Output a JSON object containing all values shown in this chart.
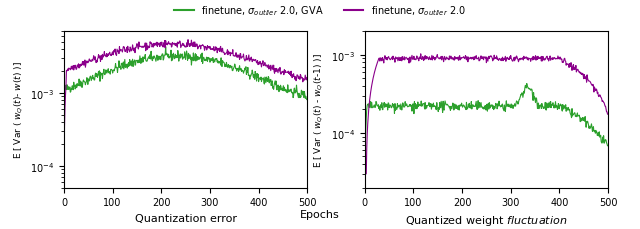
{
  "legend_labels": [
    "finetune, $\\sigma_{outlier}$ 2.0, GVA",
    "finetune, $\\sigma_{outlier}$ 2.0"
  ],
  "legend_colors": [
    "#2ca02c",
    "#8B008B"
  ],
  "left_ylabel": "E [ Var ( $w_Q(t)$- $w(t)$ )]",
  "right_ylabel": "E [ Var ( $w_Q(t)$ - $w_Q(t$-1) )]",
  "left_xlabel": "Quantization error",
  "right_xlabel": "Quantized weight $\\it{fluctuation}$",
  "shared_xlabel": "Epochs",
  "xlim": [
    0,
    500
  ],
  "left_ylim": [
    5e-05,
    0.007
  ],
  "right_ylim": [
    2e-05,
    0.002
  ],
  "n_points": 500,
  "seed": 42
}
